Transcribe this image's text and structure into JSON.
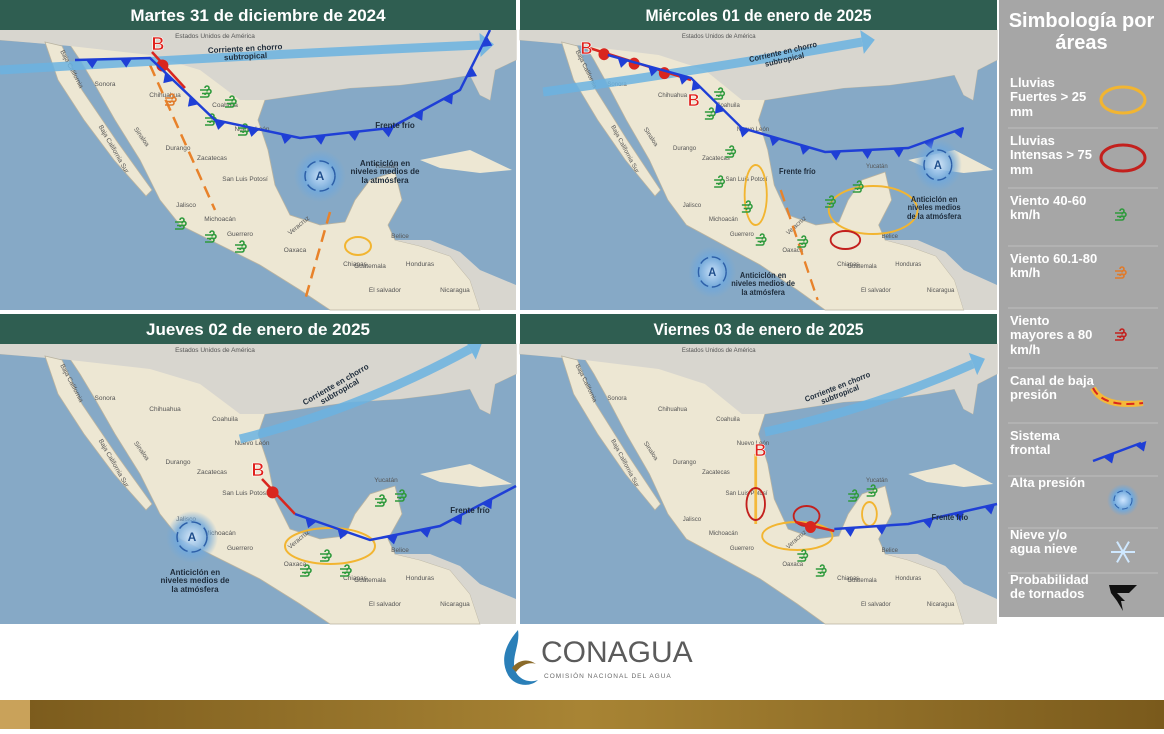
{
  "panels": [
    {
      "title": "Martes 31 de diciembre de 2024",
      "annotations": [
        "Corriente en chorro subtropical",
        "Anticiclón en niveles medios de la atmósfera",
        "Frente frío"
      ],
      "symbols": [
        "B",
        "A"
      ]
    },
    {
      "title": "Miércoles 01 de enero de 2025",
      "annotations": [
        "Corriente en chorro subtropical",
        "Frente frío",
        "Anticiclón en niveles medios de la atmósfera",
        "Anticiclón en niveles medios de la atmósfera"
      ],
      "symbols": [
        "B",
        "B",
        "A",
        "A"
      ]
    },
    {
      "title": "Jueves 02 de enero de 2025",
      "annotations": [
        "Corriente en chorro subtropical",
        "Frente frío",
        "Anticiclón en niveles medios de la atmósfera"
      ],
      "symbols": [
        "B",
        "A"
      ]
    },
    {
      "title": "Viernes 03 de enero de 2025",
      "annotations": [
        "Corriente en chorro subtropical",
        "Frente frío"
      ],
      "symbols": [
        "B"
      ]
    }
  ],
  "places": [
    "Estados Unidos de América",
    "Sonora",
    "Chihuahua",
    "Coahuila",
    "Nuevo León",
    "Durango",
    "Sinaloa",
    "Zacatecas",
    "San Luis Potosí",
    "Jalisco",
    "Michoacán",
    "Guerrero",
    "Oaxaca",
    "Veracruz",
    "Chiapas",
    "Yucatán",
    "Belice",
    "Guatemala",
    "Honduras",
    "Nicaragua",
    "El salvador",
    "Baja California",
    "Baja California Sur"
  ],
  "legend": {
    "title": "Simbología por áreas",
    "items": [
      "Lluvias Fuertes > 25 mm",
      "Lluvias Intensas > 75 mm",
      "Viento 40-60 km/h",
      "Viento 60.1-80 km/h",
      "Viento mayores a 80 km/h",
      "Canal de baja presión",
      "Sistema frontal",
      "Alta presión",
      "Nieve y/o agua nieve",
      "Probabilidad de tornados"
    ]
  },
  "footer": {
    "brand": "CONAGUA",
    "subtitle": "COMISIÓN NACIONAL DEL AGUA"
  }
}
